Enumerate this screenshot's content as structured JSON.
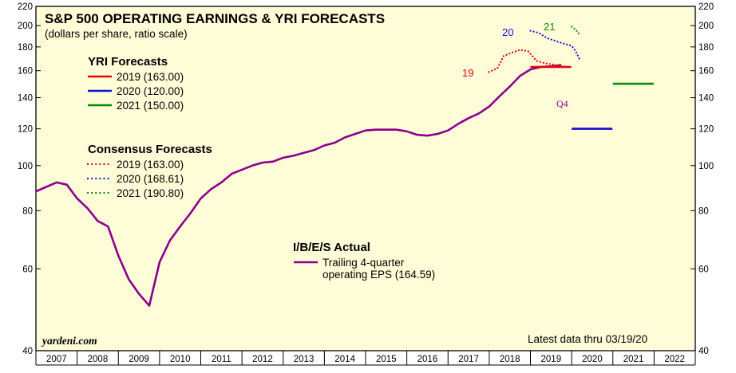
{
  "chart_data": {
    "type": "line",
    "title": "S&P 500 OPERATING EARNINGS & YRI FORECASTS",
    "subtitle": "(dollars per share, ratio scale)",
    "y_scale": "log",
    "ylim": [
      40,
      220
    ],
    "y_ticks": [
      40,
      60,
      80,
      100,
      120,
      140,
      160,
      180,
      200,
      220
    ],
    "x_ticks": [
      "2007",
      "2008",
      "2009",
      "2010",
      "2011",
      "2012",
      "2013",
      "2014",
      "2015",
      "2016",
      "2017",
      "2018",
      "2019",
      "2020",
      "2021",
      "2022"
    ],
    "xlim": [
      2007.0,
      2023.0
    ],
    "grid": false,
    "series": [
      {
        "name": "Trailing 4-quarter operating EPS (164.59)",
        "style": "solid",
        "color": "#8b008b",
        "x": [
          2007.0,
          2007.25,
          2007.5,
          2007.75,
          2008.0,
          2008.25,
          2008.5,
          2008.75,
          2009.0,
          2009.25,
          2009.5,
          2009.75,
          2010.0,
          2010.25,
          2010.5,
          2010.75,
          2011.0,
          2011.25,
          2011.5,
          2011.75,
          2012.0,
          2012.25,
          2012.5,
          2012.75,
          2013.0,
          2013.25,
          2013.5,
          2013.75,
          2014.0,
          2014.25,
          2014.5,
          2014.75,
          2015.0,
          2015.25,
          2015.5,
          2015.75,
          2016.0,
          2016.25,
          2016.5,
          2016.75,
          2017.0,
          2017.25,
          2017.5,
          2017.75,
          2018.0,
          2018.25,
          2018.5,
          2018.75,
          2019.0,
          2019.25,
          2019.5,
          2019.75
        ],
        "y": [
          88.0,
          90.0,
          92.0,
          91.0,
          85.0,
          81.0,
          76.0,
          74.0,
          64.0,
          57.0,
          53.0,
          50.0,
          62.0,
          69.0,
          74.0,
          79.0,
          85.0,
          89.0,
          92.0,
          96.0,
          98.0,
          100.0,
          101.5,
          102.0,
          104.0,
          105.0,
          106.5,
          108.0,
          110.5,
          112.0,
          115.0,
          117.0,
          119.0,
          119.5,
          119.5,
          119.5,
          118.5,
          116.5,
          116.0,
          117.0,
          119.0,
          123.0,
          126.5,
          129.5,
          134.0,
          141.0,
          148.0,
          156.0,
          161.0,
          163.0,
          163.5,
          164.59
        ]
      },
      {
        "name": "2019 (163.00)",
        "group": "YRI Forecasts",
        "style": "solid",
        "color": "#e8000b",
        "x": [
          2019.0,
          2019.99
        ],
        "y": [
          163.0,
          163.0
        ]
      },
      {
        "name": "2020 (120.00)",
        "group": "YRI Forecasts",
        "style": "solid",
        "color": "#1010d0",
        "x": [
          2020.0,
          2020.99
        ],
        "y": [
          120.0,
          120.0
        ]
      },
      {
        "name": "2021 (150.00)",
        "group": "YRI Forecasts",
        "style": "solid",
        "color": "#0a8a0a",
        "x": [
          2021.0,
          2021.99
        ],
        "y": [
          150.0,
          150.0
        ]
      },
      {
        "name": "2019 (163.00)",
        "group": "Consensus Forecasts",
        "style": "dotted",
        "color": "#e8000b",
        "x": [
          2017.99,
          2018.2,
          2018.35,
          2018.55,
          2018.75,
          2018.95,
          2019.15,
          2019.35,
          2019.55,
          2019.75,
          2019.95
        ],
        "y": [
          159.0,
          162.0,
          172.0,
          175.0,
          177.5,
          176.0,
          168.0,
          166.0,
          165.0,
          163.5,
          163.0
        ]
      },
      {
        "name": "2020 (168.61)",
        "group": "Consensus Forecasts",
        "style": "dotted",
        "color": "#1010d0",
        "x": [
          2019.0,
          2019.2,
          2019.4,
          2019.6,
          2019.8,
          2020.0,
          2020.1,
          2020.2
        ],
        "y": [
          195.0,
          193.0,
          188.0,
          185.5,
          183.0,
          181.0,
          176.0,
          168.61
        ]
      },
      {
        "name": "2021 (190.80)",
        "group": "Consensus Forecasts",
        "style": "dotted",
        "color": "#0a8a0a",
        "x": [
          2020.0,
          2020.1,
          2020.2
        ],
        "y": [
          199.0,
          196.0,
          190.8
        ]
      }
    ],
    "legend": {
      "yri_head": "YRI Forecasts",
      "consensus_head": "Consensus Forecasts",
      "actual_head": "I/B/E/S Actual",
      "actual_line1": "Trailing 4-quarter",
      "actual_line2": "operating EPS (164.59)"
    },
    "annotations": {
      "label_19": "19",
      "label_20": "20",
      "label_21": "21",
      "q4": "Q4",
      "source": "yardeni.com",
      "latest": "Latest data thru 03/19/20"
    }
  }
}
